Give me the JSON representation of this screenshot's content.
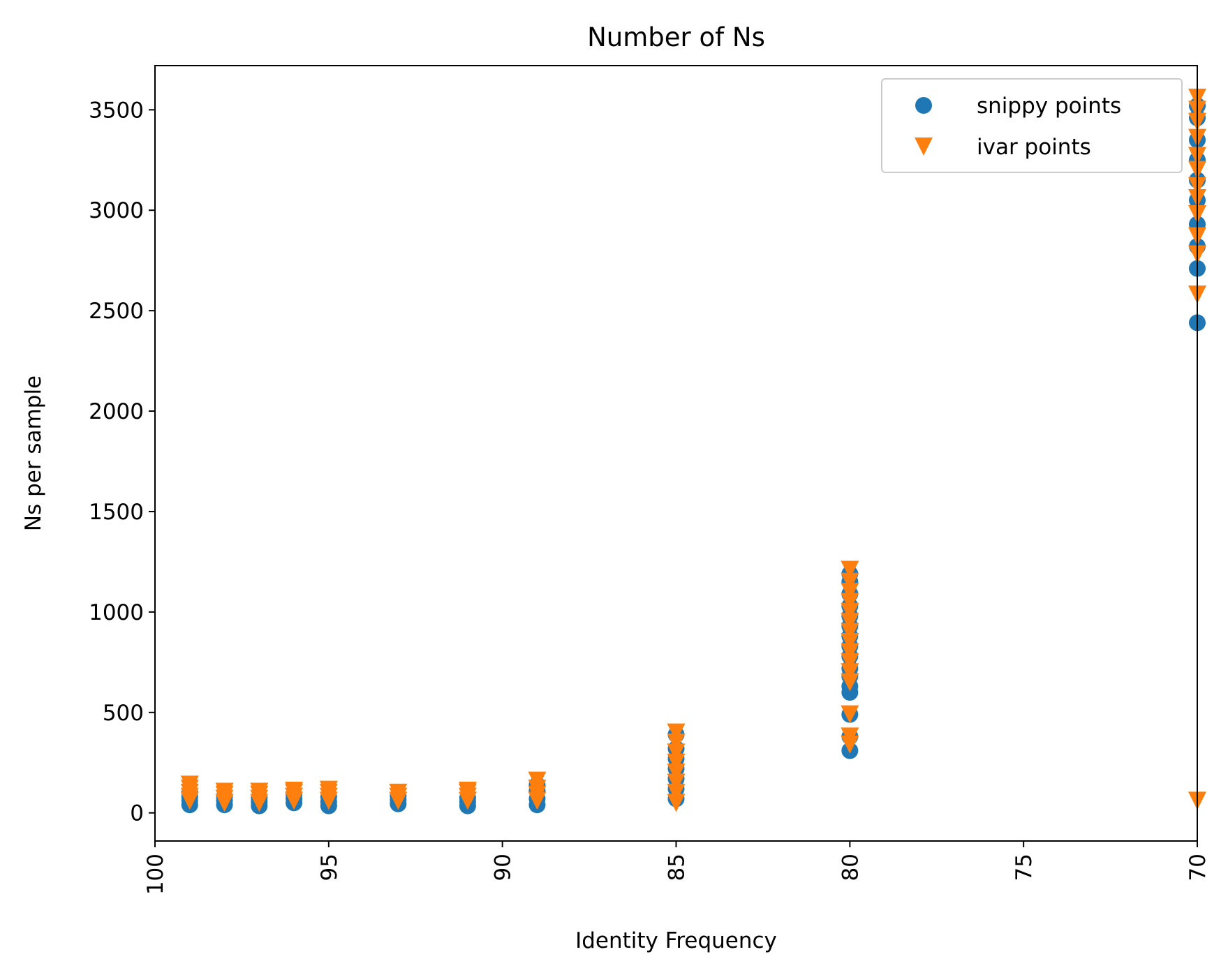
{
  "chart_data": {
    "type": "scatter",
    "title": "Number of Ns",
    "xlabel": "Identity Frequency",
    "ylabel": "Ns per sample",
    "xlim": [
      100,
      70
    ],
    "ylim": [
      -140,
      3720
    ],
    "x_inverted": true,
    "x_ticks": [
      100,
      95,
      90,
      85,
      80,
      75,
      70
    ],
    "x_tick_labels": [
      "100",
      "95",
      "90",
      "85",
      "80",
      "75",
      "70"
    ],
    "x_tick_rotation": "vertical",
    "y_ticks": [
      0,
      500,
      1000,
      1500,
      2000,
      2500,
      3000,
      3500
    ],
    "y_tick_labels": [
      "0",
      "500",
      "1000",
      "1500",
      "2000",
      "2500",
      "3000",
      "3500"
    ],
    "grid": false,
    "legend_position": "top-right",
    "series": [
      {
        "name": "snippy points",
        "marker": "circle",
        "color": "#1f77b4",
        "points": [
          [
            99,
            40
          ],
          [
            99,
            60
          ],
          [
            99,
            80
          ],
          [
            99,
            100
          ],
          [
            98,
            40
          ],
          [
            98,
            60
          ],
          [
            98,
            80
          ],
          [
            97,
            35
          ],
          [
            97,
            55
          ],
          [
            97,
            75
          ],
          [
            96,
            50
          ],
          [
            96,
            70
          ],
          [
            96,
            90
          ],
          [
            95,
            35
          ],
          [
            95,
            55
          ],
          [
            95,
            80
          ],
          [
            93,
            45
          ],
          [
            93,
            65
          ],
          [
            93,
            85
          ],
          [
            91,
            35
          ],
          [
            91,
            55
          ],
          [
            91,
            75
          ],
          [
            89,
            40
          ],
          [
            89,
            70
          ],
          [
            89,
            110
          ],
          [
            89,
            140
          ],
          [
            85,
            70
          ],
          [
            85,
            120
          ],
          [
            85,
            170
          ],
          [
            85,
            220
          ],
          [
            85,
            270
          ],
          [
            85,
            320
          ],
          [
            85,
            390
          ],
          [
            80,
            310
          ],
          [
            80,
            380
          ],
          [
            80,
            490
          ],
          [
            80,
            600
          ],
          [
            80,
            630
          ],
          [
            80,
            680
          ],
          [
            80,
            720
          ],
          [
            80,
            780
          ],
          [
            80,
            830
          ],
          [
            80,
            880
          ],
          [
            80,
            930
          ],
          [
            80,
            980
          ],
          [
            80,
            1030
          ],
          [
            80,
            1090
          ],
          [
            80,
            1150
          ],
          [
            80,
            1190
          ],
          [
            70,
            2440
          ],
          [
            70,
            2710
          ],
          [
            70,
            2820
          ],
          [
            70,
            2930
          ],
          [
            70,
            3050
          ],
          [
            70,
            3150
          ],
          [
            70,
            3250
          ],
          [
            70,
            3350
          ],
          [
            70,
            3460
          ],
          [
            70,
            3520
          ]
        ]
      },
      {
        "name": "ivar points",
        "marker": "triangle-down",
        "color": "#ff7f0e",
        "points": [
          [
            99,
            60
          ],
          [
            99,
            80
          ],
          [
            99,
            100
          ],
          [
            99,
            120
          ],
          [
            99,
            140
          ],
          [
            98,
            50
          ],
          [
            98,
            70
          ],
          [
            98,
            90
          ],
          [
            98,
            105
          ],
          [
            97,
            50
          ],
          [
            97,
            70
          ],
          [
            97,
            90
          ],
          [
            97,
            105
          ],
          [
            96,
            60
          ],
          [
            96,
            80
          ],
          [
            96,
            100
          ],
          [
            96,
            110
          ],
          [
            95,
            60
          ],
          [
            95,
            80
          ],
          [
            95,
            100
          ],
          [
            95,
            115
          ],
          [
            93,
            60
          ],
          [
            93,
            80
          ],
          [
            93,
            100
          ],
          [
            91,
            60
          ],
          [
            91,
            80
          ],
          [
            91,
            100
          ],
          [
            91,
            110
          ],
          [
            89,
            60
          ],
          [
            89,
            90
          ],
          [
            89,
            120
          ],
          [
            89,
            160
          ],
          [
            85,
            50
          ],
          [
            85,
            100
          ],
          [
            85,
            150
          ],
          [
            85,
            200
          ],
          [
            85,
            250
          ],
          [
            85,
            300
          ],
          [
            85,
            350
          ],
          [
            85,
            400
          ],
          [
            80,
            340
          ],
          [
            80,
            380
          ],
          [
            80,
            490
          ],
          [
            80,
            650
          ],
          [
            80,
            700
          ],
          [
            80,
            750
          ],
          [
            80,
            800
          ],
          [
            80,
            850
          ],
          [
            80,
            900
          ],
          [
            80,
            950
          ],
          [
            80,
            1000
          ],
          [
            80,
            1050
          ],
          [
            80,
            1100
          ],
          [
            80,
            1150
          ],
          [
            80,
            1210
          ],
          [
            70,
            60
          ],
          [
            70,
            2580
          ],
          [
            70,
            2780
          ],
          [
            70,
            2870
          ],
          [
            70,
            2980
          ],
          [
            70,
            3060
          ],
          [
            70,
            3120
          ],
          [
            70,
            3200
          ],
          [
            70,
            3270
          ],
          [
            70,
            3360
          ],
          [
            70,
            3440
          ],
          [
            70,
            3500
          ],
          [
            70,
            3560
          ]
        ]
      }
    ]
  }
}
